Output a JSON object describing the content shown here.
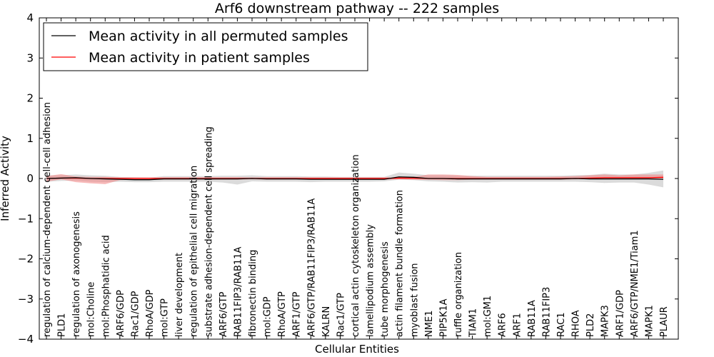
{
  "chart_data": {
    "type": "line",
    "title": "Arf6 downstream pathway -- 222 samples",
    "xlabel": "Cellular Entities",
    "ylabel": "Inferred Activity",
    "ylim": [
      -4,
      4
    ],
    "yticks": [
      -4,
      -3,
      -2,
      -1,
      0,
      1,
      2,
      3,
      4
    ],
    "ytick_labels": [
      "−4",
      "−3",
      "−2",
      "−1",
      "0",
      "1",
      "2",
      "3",
      "4"
    ],
    "legend_position": "top-left",
    "colors": {
      "permuted": "#000000",
      "permuted_band": "#bdbdbd",
      "patient": "#ff0000",
      "patient_band": "#f08080"
    },
    "categories": [
      "regulation of calcium-dependent cell-cell adhesion",
      "PLD1",
      "regulation of axonogenesis",
      "mol:Choline",
      "mol:Phosphatidic acid",
      "ARF6/GDP",
      "Rac1/GDP",
      "RhoA/GDP",
      "mol:GTP",
      "liver development",
      "regulation of epithelial cell migration",
      "substrate adhesion-dependent cell spreading",
      "ARF6/GTP",
      "RAB11FIP3/RAB11A",
      "fibronectin binding",
      "mol:GDP",
      "RhoA/GTP",
      "ARF1/GTP",
      "ARF6/GTP/RAB11FIP3/RAB11A",
      "KALRN",
      "Rac1/GTP",
      "cortical actin cytoskeleton organization",
      "lamellipodium assembly",
      "tube morphogenesis",
      "actin filament bundle formation",
      "myoblast fusion",
      "NME1",
      "PIP5K1A",
      "ruffle organization",
      "TIAM1",
      "mol:GM1",
      "ARF6",
      "ARF1",
      "RAB11A",
      "RAB11FIP3",
      "RAC1",
      "RHOA",
      "PLD2",
      "MAPK3",
      "ARF1/GDP",
      "ARF6/GTP/NME1/Tiam1",
      "MAPK1",
      "PLAUR"
    ],
    "series": [
      {
        "name": "Mean activity in all permuted samples",
        "values": [
          0.0,
          0.01,
          0.02,
          0.0,
          -0.01,
          -0.02,
          -0.03,
          -0.03,
          -0.01,
          -0.01,
          -0.01,
          -0.01,
          -0.01,
          -0.01,
          0.0,
          -0.01,
          -0.01,
          -0.01,
          -0.02,
          -0.02,
          -0.02,
          -0.02,
          -0.02,
          -0.02,
          0.04,
          0.03,
          0.0,
          0.0,
          -0.01,
          -0.01,
          -0.01,
          -0.01,
          -0.01,
          -0.01,
          -0.01,
          -0.01,
          0.0,
          -0.01,
          -0.01,
          -0.01,
          -0.01,
          -0.01,
          -0.02
        ],
        "lower": [
          -0.08,
          -0.06,
          -0.05,
          -0.08,
          -0.09,
          -0.08,
          -0.09,
          -0.09,
          -0.08,
          -0.08,
          -0.08,
          -0.08,
          -0.1,
          -0.15,
          -0.07,
          -0.08,
          -0.08,
          -0.08,
          -0.09,
          -0.08,
          -0.08,
          -0.08,
          -0.08,
          -0.07,
          -0.03,
          -0.04,
          -0.07,
          -0.08,
          -0.1,
          -0.09,
          -0.1,
          -0.08,
          -0.08,
          -0.08,
          -0.08,
          -0.08,
          -0.08,
          -0.09,
          -0.11,
          -0.1,
          -0.1,
          -0.15,
          -0.22
        ],
        "upper": [
          0.08,
          0.08,
          0.1,
          0.08,
          0.07,
          0.04,
          0.03,
          0.02,
          0.06,
          0.06,
          0.06,
          0.06,
          0.07,
          0.07,
          0.08,
          0.06,
          0.06,
          0.06,
          0.05,
          0.05,
          0.04,
          0.04,
          0.04,
          0.04,
          0.15,
          0.12,
          0.08,
          0.08,
          0.07,
          0.07,
          0.07,
          0.07,
          0.07,
          0.07,
          0.07,
          0.07,
          0.08,
          0.09,
          0.12,
          0.1,
          0.1,
          0.14,
          0.2
        ]
      },
      {
        "name": "Mean activity in patient samples",
        "values": [
          0.0,
          0.01,
          0.01,
          0.0,
          0.0,
          0.0,
          0.0,
          0.0,
          0.0,
          0.0,
          0.0,
          0.0,
          0.0,
          0.0,
          0.0,
          0.0,
          0.0,
          0.0,
          0.0,
          0.0,
          0.0,
          0.0,
          0.0,
          0.0,
          0.01,
          0.01,
          0.0,
          0.0,
          0.0,
          0.0,
          0.0,
          0.0,
          0.0,
          0.0,
          0.0,
          0.0,
          0.0,
          0.01,
          0.02,
          0.02,
          0.02,
          0.02,
          0.03
        ],
        "lower": [
          -0.08,
          -0.02,
          -0.09,
          -0.12,
          -0.14,
          -0.04,
          -0.03,
          -0.03,
          -0.03,
          -0.03,
          -0.03,
          -0.03,
          -0.03,
          -0.03,
          -0.02,
          -0.03,
          -0.03,
          -0.03,
          -0.03,
          -0.03,
          -0.03,
          -0.03,
          -0.03,
          -0.03,
          -0.02,
          -0.03,
          -0.03,
          -0.04,
          -0.04,
          -0.03,
          -0.03,
          -0.03,
          -0.03,
          -0.03,
          -0.03,
          -0.03,
          -0.02,
          -0.01,
          0.0,
          0.0,
          -0.01,
          0.0,
          0.0
        ],
        "upper": [
          0.06,
          0.11,
          0.05,
          0.04,
          0.04,
          0.03,
          0.03,
          0.03,
          0.03,
          0.03,
          0.03,
          0.03,
          0.03,
          0.03,
          0.03,
          0.03,
          0.03,
          0.03,
          0.03,
          0.03,
          0.03,
          0.03,
          0.03,
          0.03,
          0.03,
          0.04,
          0.1,
          0.1,
          0.09,
          0.06,
          0.04,
          0.04,
          0.04,
          0.04,
          0.04,
          0.05,
          0.06,
          0.08,
          0.1,
          0.08,
          0.1,
          0.1,
          0.1
        ]
      }
    ]
  }
}
